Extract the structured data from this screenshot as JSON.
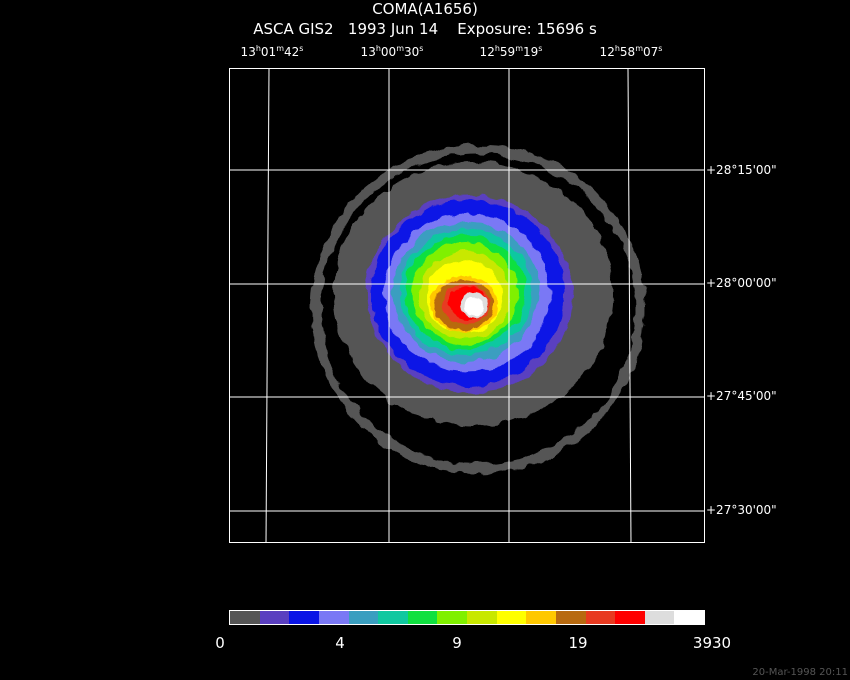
{
  "header": {
    "object": "COMA(A1656)",
    "instrument": "ASCA GIS2",
    "date": "1993 Jun 14",
    "exposure": "Exposure: 15696 s"
  },
  "ra_labels": [
    {
      "h": "13",
      "m": "01",
      "s": "42"
    },
    {
      "h": "13",
      "m": "00",
      "s": "30"
    },
    {
      "h": "12",
      "m": "59",
      "s": "19"
    },
    {
      "h": "12",
      "m": "58",
      "s": "07"
    }
  ],
  "dec_labels": [
    "+28°15'00\"",
    "+28°00'00\"",
    "+27°45'00\"",
    "+27°30'00\""
  ],
  "colorbar": {
    "colors": [
      "#555555",
      "#5a3fc0",
      "#0a14e6",
      "#7a78f5",
      "#3a9ec0",
      "#10c8a0",
      "#10e040",
      "#80f000",
      "#c8e800",
      "#ffff00",
      "#ffc800",
      "#b86a10",
      "#e83a20",
      "#ff0000",
      "#dddddd",
      "#ffffff"
    ],
    "ticks": [
      "0",
      "4",
      "9",
      "19",
      "3930"
    ]
  },
  "footer": {
    "timestamp": "20-Mar-1998 20:11"
  }
}
